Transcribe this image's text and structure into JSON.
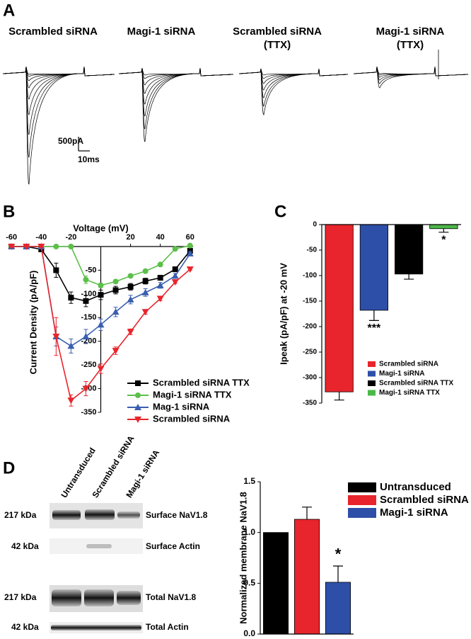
{
  "figure": {
    "panel_labels": [
      "A",
      "B",
      "C",
      "D"
    ]
  },
  "traces": {
    "titles": [
      [
        "Scrambled siRNA"
      ],
      [
        "Magi-1 siRNA"
      ],
      [
        "Scrambled siRNA",
        "(TTX)"
      ],
      [
        "Magi-1 siRNA",
        "(TTX)"
      ]
    ],
    "scale_current": "500pA",
    "scale_time": "10ms"
  },
  "blot": {
    "lanes": [
      "Untransduced",
      "Scrambled siRNA",
      "Magi-1 siRNA"
    ],
    "rows": [
      {
        "size": "217 kDa",
        "label": "Surface NaV1.8"
      },
      {
        "size": "42 kDa",
        "label": "Surface Actin"
      },
      {
        "size": "217 kDa",
        "label": "Total NaV1.8"
      },
      {
        "size": "42 kDa",
        "label": "Total Actin"
      }
    ]
  },
  "chart_data": [
    {
      "type": "line",
      "xlabel": "Voltage (mV)",
      "ylabel": "Current Density (pA/pF)",
      "x": [
        -60,
        -50,
        -40,
        -30,
        -20,
        -10,
        0,
        10,
        20,
        30,
        40,
        50,
        60
      ],
      "xlim": [
        -62,
        62
      ],
      "ylim": [
        -350,
        0
      ],
      "xticks": [
        -60,
        -40,
        -20,
        20,
        40,
        60
      ],
      "yticks": [
        -50,
        -100,
        -150,
        -200,
        -250,
        -300,
        -350
      ],
      "series": [
        {
          "name": "Scrambled siRNA  TTX",
          "color": "#000000",
          "marker": "square",
          "values": [
            0,
            0,
            -6,
            -50,
            -108,
            -115,
            -102,
            -92,
            -85,
            -73,
            -66,
            -48,
            -9
          ],
          "errors": [
            0,
            0,
            3,
            15,
            12,
            12,
            10,
            8,
            7,
            6,
            5,
            5,
            4
          ]
        },
        {
          "name": "Magi-1 siRNA TTX",
          "color": "#5cbf4a",
          "marker": "circle",
          "values": [
            0,
            0,
            0,
            0,
            0,
            -70,
            -82,
            -74,
            -62,
            -52,
            -38,
            -5,
            2
          ],
          "errors": [
            0,
            0,
            0,
            0,
            0,
            8,
            5,
            4,
            3,
            3,
            3,
            2,
            2
          ]
        },
        {
          "name": "Mag-1 siRNA",
          "color": "#3a5fb0",
          "marker": "triangle-up",
          "values": [
            0,
            0,
            0,
            -190,
            -210,
            -190,
            -165,
            -138,
            -112,
            -97,
            -82,
            -62,
            -15
          ],
          "errors": [
            0,
            0,
            0,
            20,
            15,
            15,
            12,
            10,
            9,
            8,
            6,
            5,
            4
          ]
        },
        {
          "name": "Scrambled siRNA",
          "color": "#e8252c",
          "marker": "triangle-down",
          "values": [
            0,
            0,
            0,
            -190,
            -325,
            -300,
            -258,
            -220,
            -180,
            -138,
            -110,
            -75,
            -48
          ],
          "errors": [
            0,
            0,
            0,
            40,
            12,
            15,
            10,
            8,
            6,
            5,
            4,
            3,
            2
          ]
        }
      ]
    },
    {
      "type": "bar",
      "ylabel": "Ipeak (pA/pF) at -20 mV",
      "categories": [
        "Scrambled siRNA",
        "Magi-1 siRNA",
        "Scrambled siRNA   TTX",
        "Magi-1 siRNA TTX"
      ],
      "values": [
        -328,
        -168,
        -97,
        -8
      ],
      "errors": [
        16,
        20,
        10,
        7
      ],
      "annotations": [
        null,
        "***",
        null,
        "*"
      ],
      "colors": [
        "#e8252c",
        "#2e4fa8",
        "#000000",
        "#4cb848"
      ],
      "ylim": [
        -350,
        0
      ],
      "yticks": [
        0,
        -50,
        -100,
        -150,
        -200,
        -250,
        -300,
        -350
      ]
    },
    {
      "type": "bar",
      "ylabel": "Normalized membrane NaV1.8",
      "categories": [
        "Untransduced",
        "Scrambled siRNA",
        "Magi-1 siRNA"
      ],
      "values": [
        1.0,
        1.13,
        0.51
      ],
      "errors": [
        null,
        0.12,
        0.16
      ],
      "annotations": [
        null,
        null,
        "*"
      ],
      "colors": [
        "#000000",
        "#e8252c",
        "#2e4fa8"
      ],
      "ylim": [
        0,
        1.5
      ],
      "yticks": [
        {
          "value": 0,
          "label": "0.0"
        },
        {
          "value": 0.5,
          "label": "0.5"
        },
        {
          "value": 1.0,
          "label": "1.0"
        },
        {
          "value": 1.5,
          "label": "1.5"
        }
      ]
    }
  ]
}
